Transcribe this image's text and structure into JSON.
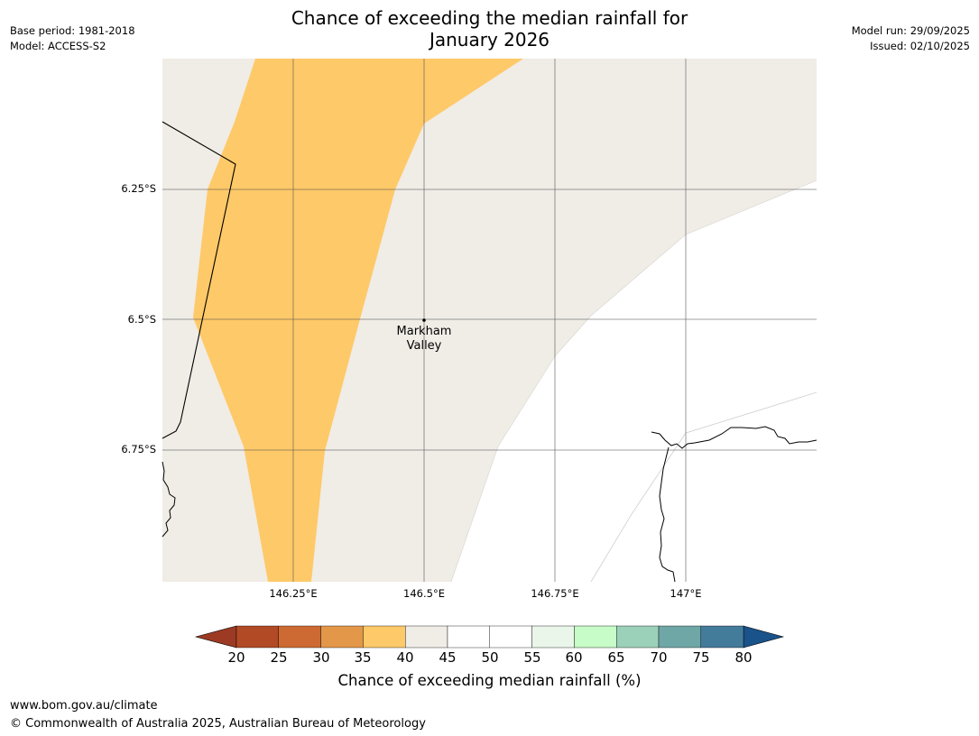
{
  "title_line1": "Chance of exceeding the median rainfall for",
  "title_line2": "January 2026",
  "meta_left": [
    "Base period: 1981-2018",
    "Model: ACCESS-S2"
  ],
  "meta_right": [
    "Model run: 29/09/2025",
    "Issued: 02/10/2025"
  ],
  "lat_labels": [
    "6.25°S",
    "6.5°S",
    "6.75°S"
  ],
  "lon_labels": [
    "146.25°E",
    "146.5°E",
    "146.75°E",
    "147°E"
  ],
  "place_name": [
    "Markham",
    "Valley"
  ],
  "colorbar": {
    "ticks": [
      "20",
      "25",
      "30",
      "35",
      "40",
      "45",
      "50",
      "55",
      "60",
      "65",
      "70",
      "75",
      "80"
    ],
    "colors": [
      "#9c3a23",
      "#b24a26",
      "#cd6a33",
      "#e39748",
      "#fec968",
      "#f0ece6",
      "#ffffff",
      "#ffffff",
      "#eaf6e9",
      "#c7fbc7",
      "#9cd1b9",
      "#6fa6a6",
      "#437b9b",
      "#1a528a"
    ],
    "label": "Chance of exceeding median rainfall (%)"
  },
  "footer": [
    "www.bom.gov.au/climate",
    "© Commonwealth of Australia 2025, Australian Bureau of Meteorology"
  ]
}
